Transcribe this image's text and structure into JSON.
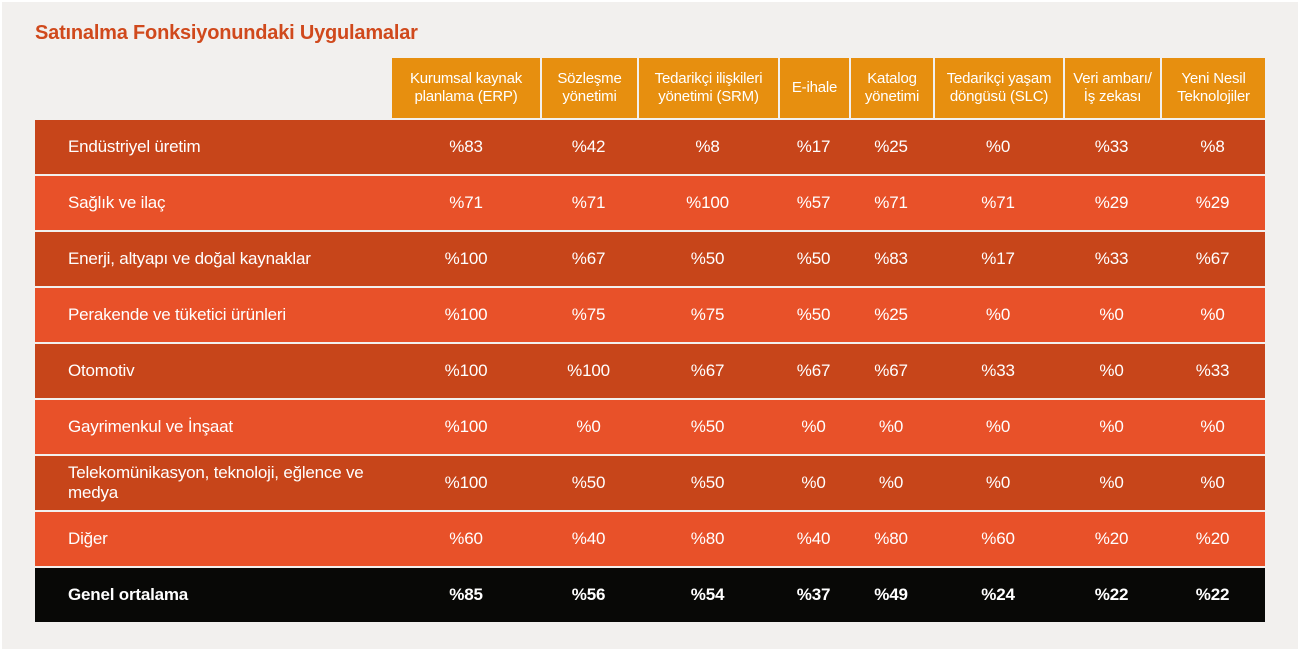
{
  "title": "Satınalma Fonksiyonundaki Uygulamalar",
  "colors": {
    "page_background": "#f2f0ee",
    "title_text": "#d0491c",
    "header_background": "#e78f0f",
    "row_dark": "#c7451a",
    "row_light": "#e85129",
    "footer_background": "#080806",
    "cell_text": "#ffffff"
  },
  "value_prefix": "%",
  "chart_data": {
    "type": "table",
    "title": "Satınalma Fonksiyonundaki Uygulamalar",
    "value_unit": "percent, shown with Turkish-style leading % sign",
    "value_range": [
      0,
      100
    ],
    "columns": [
      "Kurumsal kaynak planlama (ERP)",
      "Sözleşme yönetimi",
      "Tedarikçi ilişkileri yönetimi (SRM)",
      "E-ihale",
      "Katalog yönetimi",
      "Tedarikçi yaşam döngüsü (SLC)",
      "Veri ambarı/ İş zekası",
      "Yeni Nesil Teknolojiler"
    ],
    "rows": [
      {
        "label": "Endüstriyel üretim",
        "values": [
          83,
          42,
          8,
          17,
          25,
          0,
          33,
          8
        ]
      },
      {
        "label": "Sağlık ve ilaç",
        "values": [
          71,
          71,
          100,
          57,
          71,
          71,
          29,
          29
        ]
      },
      {
        "label": "Enerji, altyapı ve doğal kaynaklar",
        "values": [
          100,
          67,
          50,
          50,
          83,
          17,
          33,
          67
        ]
      },
      {
        "label": "Perakende ve tüketici ürünleri",
        "values": [
          100,
          75,
          75,
          50,
          25,
          0,
          0,
          0
        ]
      },
      {
        "label": "Otomotiv",
        "values": [
          100,
          100,
          67,
          67,
          67,
          33,
          0,
          33
        ]
      },
      {
        "label": "Gayrimenkul ve İnşaat",
        "values": [
          100,
          0,
          50,
          0,
          0,
          0,
          0,
          0
        ]
      },
      {
        "label": "Telekomünikasyon, teknoloji, eğlence ve medya",
        "values": [
          100,
          50,
          50,
          0,
          0,
          0,
          0,
          0
        ]
      },
      {
        "label": "Diğer",
        "values": [
          60,
          40,
          80,
          40,
          80,
          60,
          20,
          20
        ]
      }
    ],
    "footer": {
      "label": "Genel ortalama",
      "values": [
        85,
        56,
        54,
        37,
        49,
        24,
        22,
        22
      ]
    }
  }
}
